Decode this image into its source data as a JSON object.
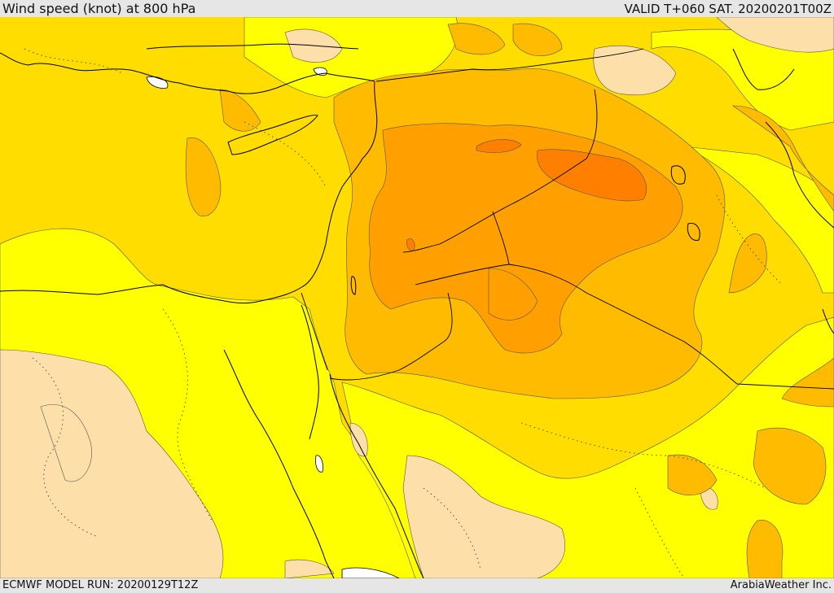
{
  "header": {
    "title": "Wind speed (knot) at 800 hPa",
    "valid": "VALID T+060 SAT. 20200201T00Z"
  },
  "footer": {
    "model_run": "ECMWF MODEL RUN: 20200129T12Z",
    "credit": "ArabiaWeather Inc."
  },
  "colors": {
    "light_tan": "#fde0a9",
    "yellow": "#ffff00",
    "gold": "#ffdd00",
    "light_orange": "#ffbb00",
    "orange": "#ffa000",
    "dark_orange": "#ff8000",
    "water_white": "#ffffff",
    "coast": "#000000",
    "contour": "#666666"
  }
}
